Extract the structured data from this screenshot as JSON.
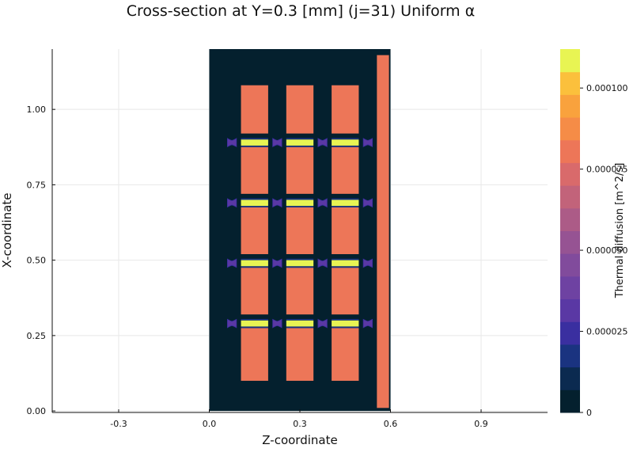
{
  "chart_data": {
    "type": "heatmap",
    "title": "Cross-section at Y=0.3 [mm] (j=31) Uniform α",
    "xlabel": "Z-coordinate",
    "ylabel": "X-coordinate",
    "xlim": [
      -0.52,
      1.12
    ],
    "ylim": [
      -0.005,
      1.2
    ],
    "x_ticks": [
      {
        "value": -0.3,
        "label": "-0.3"
      },
      {
        "value": 0.0,
        "label": "0.0"
      },
      {
        "value": 0.3,
        "label": "0.3"
      },
      {
        "value": 0.6,
        "label": "0.6"
      },
      {
        "value": 0.9,
        "label": "0.9"
      }
    ],
    "y_ticks": [
      {
        "value": 0.0,
        "label": "0.00"
      },
      {
        "value": 0.25,
        "label": "0.25"
      },
      {
        "value": 0.5,
        "label": "0.50"
      },
      {
        "value": 0.75,
        "label": "0.75"
      },
      {
        "value": 1.0,
        "label": "1.00"
      }
    ],
    "grid": true,
    "domain": {
      "z": [
        0.0,
        0.6
      ],
      "x": [
        0.0,
        1.2
      ],
      "value": 0.0
    },
    "regions": [
      {
        "kind": "block",
        "z": [
          0.105,
          0.195
        ],
        "x": [
          0.1,
          0.275
        ],
        "value": 8.56e-05
      },
      {
        "kind": "block",
        "z": [
          0.105,
          0.195
        ],
        "x": [
          0.32,
          0.475
        ],
        "value": 8.56e-05
      },
      {
        "kind": "block",
        "z": [
          0.105,
          0.195
        ],
        "x": [
          0.52,
          0.675
        ],
        "value": 8.56e-05
      },
      {
        "kind": "block",
        "z": [
          0.105,
          0.195
        ],
        "x": [
          0.72,
          0.875
        ],
        "value": 8.56e-05
      },
      {
        "kind": "block",
        "z": [
          0.105,
          0.195
        ],
        "x": [
          0.92,
          1.08
        ],
        "value": 8.56e-05
      },
      {
        "kind": "block",
        "z": [
          0.255,
          0.345
        ],
        "x": [
          0.1,
          0.275
        ],
        "value": 8.56e-05
      },
      {
        "kind": "block",
        "z": [
          0.255,
          0.345
        ],
        "x": [
          0.32,
          0.475
        ],
        "value": 8.56e-05
      },
      {
        "kind": "block",
        "z": [
          0.255,
          0.345
        ],
        "x": [
          0.52,
          0.675
        ],
        "value": 8.56e-05
      },
      {
        "kind": "block",
        "z": [
          0.255,
          0.345
        ],
        "x": [
          0.72,
          0.875
        ],
        "value": 8.56e-05
      },
      {
        "kind": "block",
        "z": [
          0.255,
          0.345
        ],
        "x": [
          0.92,
          1.08
        ],
        "value": 8.56e-05
      },
      {
        "kind": "block",
        "z": [
          0.405,
          0.495
        ],
        "x": [
          0.1,
          0.275
        ],
        "value": 8.56e-05
      },
      {
        "kind": "block",
        "z": [
          0.405,
          0.495
        ],
        "x": [
          0.32,
          0.475
        ],
        "value": 8.56e-05
      },
      {
        "kind": "block",
        "z": [
          0.405,
          0.495
        ],
        "x": [
          0.52,
          0.675
        ],
        "value": 8.56e-05
      },
      {
        "kind": "block",
        "z": [
          0.405,
          0.495
        ],
        "x": [
          0.72,
          0.875
        ],
        "value": 8.56e-05
      },
      {
        "kind": "block",
        "z": [
          0.405,
          0.495
        ],
        "x": [
          0.92,
          1.08
        ],
        "value": 8.56e-05
      },
      {
        "kind": "side-strip",
        "z": [
          0.555,
          0.595
        ],
        "x": [
          0.01,
          1.18
        ],
        "value": 8.56e-05
      },
      {
        "kind": "edge",
        "z": [
          0.105,
          0.195
        ],
        "x": [
          0.275,
          0.28
        ],
        "value": 1.5e-05
      },
      {
        "kind": "edge",
        "z": [
          0.105,
          0.195
        ],
        "x": [
          0.3,
          0.305
        ],
        "value": 1.5e-05
      },
      {
        "kind": "edge",
        "z": [
          0.255,
          0.345
        ],
        "x": [
          0.275,
          0.28
        ],
        "value": 1.5e-05
      },
      {
        "kind": "edge",
        "z": [
          0.255,
          0.345
        ],
        "x": [
          0.3,
          0.305
        ],
        "value": 1.5e-05
      },
      {
        "kind": "edge",
        "z": [
          0.405,
          0.495
        ],
        "x": [
          0.275,
          0.28
        ],
        "value": 1.5e-05
      },
      {
        "kind": "edge",
        "z": [
          0.405,
          0.495
        ],
        "x": [
          0.3,
          0.305
        ],
        "value": 1.5e-05
      },
      {
        "kind": "edge",
        "z": [
          0.105,
          0.195
        ],
        "x": [
          0.475,
          0.48
        ],
        "value": 1.5e-05
      },
      {
        "kind": "edge",
        "z": [
          0.105,
          0.195
        ],
        "x": [
          0.5,
          0.505
        ],
        "value": 1.5e-05
      },
      {
        "kind": "edge",
        "z": [
          0.255,
          0.345
        ],
        "x": [
          0.475,
          0.48
        ],
        "value": 1.5e-05
      },
      {
        "kind": "edge",
        "z": [
          0.255,
          0.345
        ],
        "x": [
          0.5,
          0.505
        ],
        "value": 1.5e-05
      },
      {
        "kind": "edge",
        "z": [
          0.405,
          0.495
        ],
        "x": [
          0.475,
          0.48
        ],
        "value": 1.5e-05
      },
      {
        "kind": "edge",
        "z": [
          0.405,
          0.495
        ],
        "x": [
          0.5,
          0.505
        ],
        "value": 1.5e-05
      },
      {
        "kind": "edge",
        "z": [
          0.105,
          0.195
        ],
        "x": [
          0.675,
          0.68
        ],
        "value": 1.5e-05
      },
      {
        "kind": "edge",
        "z": [
          0.105,
          0.195
        ],
        "x": [
          0.7,
          0.705
        ],
        "value": 1.5e-05
      },
      {
        "kind": "edge",
        "z": [
          0.255,
          0.345
        ],
        "x": [
          0.675,
          0.68
        ],
        "value": 1.5e-05
      },
      {
        "kind": "edge",
        "z": [
          0.255,
          0.345
        ],
        "x": [
          0.7,
          0.705
        ],
        "value": 1.5e-05
      },
      {
        "kind": "edge",
        "z": [
          0.405,
          0.495
        ],
        "x": [
          0.675,
          0.68
        ],
        "value": 1.5e-05
      },
      {
        "kind": "edge",
        "z": [
          0.405,
          0.495
        ],
        "x": [
          0.7,
          0.705
        ],
        "value": 1.5e-05
      },
      {
        "kind": "edge",
        "z": [
          0.105,
          0.195
        ],
        "x": [
          0.875,
          0.88
        ],
        "value": 1.5e-05
      },
      {
        "kind": "edge",
        "z": [
          0.105,
          0.195
        ],
        "x": [
          0.9,
          0.905
        ],
        "value": 1.5e-05
      },
      {
        "kind": "edge",
        "z": [
          0.255,
          0.345
        ],
        "x": [
          0.875,
          0.88
        ],
        "value": 1.5e-05
      },
      {
        "kind": "edge",
        "z": [
          0.255,
          0.345
        ],
        "x": [
          0.9,
          0.905
        ],
        "value": 1.5e-05
      },
      {
        "kind": "edge",
        "z": [
          0.405,
          0.495
        ],
        "x": [
          0.875,
          0.88
        ],
        "value": 1.5e-05
      },
      {
        "kind": "edge",
        "z": [
          0.405,
          0.495
        ],
        "x": [
          0.9,
          0.905
        ],
        "value": 1.5e-05
      },
      {
        "kind": "joint",
        "z": [
          0.105,
          0.195
        ],
        "x": [
          0.28,
          0.3
        ],
        "value": 0.00011
      },
      {
        "kind": "joint",
        "z": [
          0.255,
          0.345
        ],
        "x": [
          0.28,
          0.3
        ],
        "value": 0.00011
      },
      {
        "kind": "joint",
        "z": [
          0.405,
          0.495
        ],
        "x": [
          0.28,
          0.3
        ],
        "value": 0.00011
      },
      {
        "kind": "joint",
        "z": [
          0.105,
          0.195
        ],
        "x": [
          0.48,
          0.5
        ],
        "value": 0.00011
      },
      {
        "kind": "joint",
        "z": [
          0.255,
          0.345
        ],
        "x": [
          0.48,
          0.5
        ],
        "value": 0.00011
      },
      {
        "kind": "joint",
        "z": [
          0.405,
          0.495
        ],
        "x": [
          0.48,
          0.5
        ],
        "value": 0.00011
      },
      {
        "kind": "joint",
        "z": [
          0.105,
          0.195
        ],
        "x": [
          0.68,
          0.7
        ],
        "value": 0.00011
      },
      {
        "kind": "joint",
        "z": [
          0.255,
          0.345
        ],
        "x": [
          0.68,
          0.7
        ],
        "value": 0.00011
      },
      {
        "kind": "joint",
        "z": [
          0.405,
          0.495
        ],
        "x": [
          0.68,
          0.7
        ],
        "value": 0.00011
      },
      {
        "kind": "joint",
        "z": [
          0.105,
          0.195
        ],
        "x": [
          0.88,
          0.9
        ],
        "value": 0.00011
      },
      {
        "kind": "joint",
        "z": [
          0.255,
          0.345
        ],
        "x": [
          0.88,
          0.9
        ],
        "value": 0.00011
      },
      {
        "kind": "joint",
        "z": [
          0.405,
          0.495
        ],
        "x": [
          0.88,
          0.9
        ],
        "value": 0.00011
      }
    ],
    "connectors": [
      {
        "z": 0.075,
        "x": 0.29,
        "half_z": 0.025,
        "half_x": 0.025,
        "value": 3e-05
      },
      {
        "z": 0.225,
        "x": 0.29,
        "half_z": 0.025,
        "half_x": 0.025,
        "value": 3e-05
      },
      {
        "z": 0.375,
        "x": 0.29,
        "half_z": 0.025,
        "half_x": 0.025,
        "value": 3e-05
      },
      {
        "z": 0.525,
        "x": 0.29,
        "half_z": 0.025,
        "half_x": 0.025,
        "value": 3e-05
      },
      {
        "z": 0.075,
        "x": 0.49,
        "half_z": 0.025,
        "half_x": 0.025,
        "value": 3e-05
      },
      {
        "z": 0.225,
        "x": 0.49,
        "half_z": 0.025,
        "half_x": 0.025,
        "value": 3e-05
      },
      {
        "z": 0.375,
        "x": 0.49,
        "half_z": 0.025,
        "half_x": 0.025,
        "value": 3e-05
      },
      {
        "z": 0.525,
        "x": 0.49,
        "half_z": 0.025,
        "half_x": 0.025,
        "value": 3e-05
      },
      {
        "z": 0.075,
        "x": 0.69,
        "half_z": 0.025,
        "half_x": 0.025,
        "value": 3e-05
      },
      {
        "z": 0.225,
        "x": 0.69,
        "half_z": 0.025,
        "half_x": 0.025,
        "value": 3e-05
      },
      {
        "z": 0.375,
        "x": 0.69,
        "half_z": 0.025,
        "half_x": 0.025,
        "value": 3e-05
      },
      {
        "z": 0.525,
        "x": 0.69,
        "half_z": 0.025,
        "half_x": 0.025,
        "value": 3e-05
      },
      {
        "z": 0.075,
        "x": 0.89,
        "half_z": 0.025,
        "half_x": 0.025,
        "value": 3e-05
      },
      {
        "z": 0.225,
        "x": 0.89,
        "half_z": 0.025,
        "half_x": 0.025,
        "value": 3e-05
      },
      {
        "z": 0.375,
        "x": 0.89,
        "half_z": 0.025,
        "half_x": 0.025,
        "value": 3e-05
      },
      {
        "z": 0.525,
        "x": 0.89,
        "half_z": 0.025,
        "half_x": 0.025,
        "value": 3e-05
      }
    ],
    "colorbar": {
      "label": "Thermal diffusion [m^2/s]",
      "range": [
        0,
        0.000112
      ],
      "levels": [
        {
          "value": 0.0,
          "color": "#04202e"
        },
        {
          "value": 7.5e-06,
          "color": "#0b2a50"
        },
        {
          "value": 1.49e-05,
          "color": "#1a3380"
        },
        {
          "value": 2.24e-05,
          "color": "#3a2fa0"
        },
        {
          "value": 2.99e-05,
          "color": "#5a38a4"
        },
        {
          "value": 3.73e-05,
          "color": "#6e42a2"
        },
        {
          "value": 4.48e-05,
          "color": "#814b9c"
        },
        {
          "value": 5.23e-05,
          "color": "#965393"
        },
        {
          "value": 5.97e-05,
          "color": "#ac5b87"
        },
        {
          "value": 6.72e-05,
          "color": "#c2637a"
        },
        {
          "value": 7.47e-05,
          "color": "#d96a6b"
        },
        {
          "value": 8.21e-05,
          "color": "#ed7658"
        },
        {
          "value": 8.96e-05,
          "color": "#f58c47"
        },
        {
          "value": 9.71e-05,
          "color": "#f9a23d"
        },
        {
          "value": 0.0001045,
          "color": "#fbc03c"
        },
        {
          "value": 0.000112,
          "color": "#e8f453"
        }
      ],
      "ticks": [
        {
          "value": 0.0,
          "label": "0"
        },
        {
          "value": 2.5e-05,
          "label": "0.000025"
        },
        {
          "value": 5e-05,
          "label": "0.000050"
        },
        {
          "value": 7.5e-05,
          "label": "0.000075"
        },
        {
          "value": 0.0001,
          "label": "0.000100"
        }
      ]
    }
  }
}
